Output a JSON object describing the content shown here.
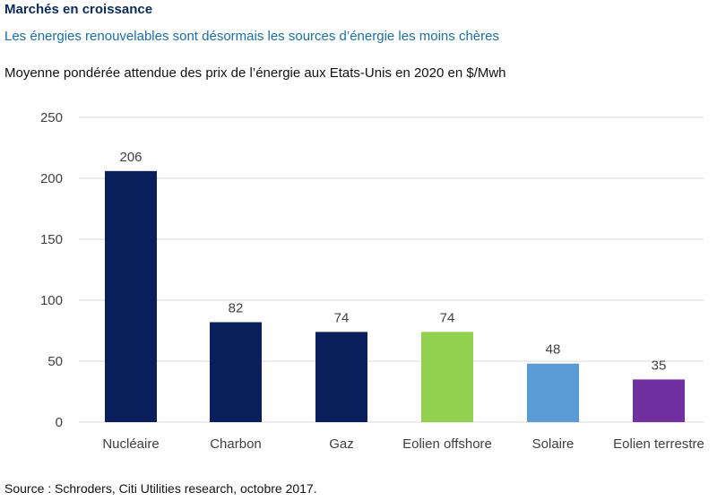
{
  "header": {
    "title": "Marchés en croissance",
    "subtitle": "Les énergies renouvelables sont désormais les sources d’énergie les moins chères"
  },
  "chart_caption": "Moyenne pondérée attendue des prix de l’énergie aux Etats-Unis en 2020 en $/Mwh",
  "source": "Source : Schroders, Citi Utilities research, octobre 2017.",
  "chart_data": {
    "type": "bar",
    "title": "Moyenne pondérée attendue des prix de l’énergie aux Etats-Unis en 2020 en $/Mwh",
    "xlabel": "",
    "ylabel": "",
    "categories": [
      "Nucléaire",
      "Charbon",
      "Gaz",
      "Eolien offshore",
      "Solaire",
      "Eolien terrestre"
    ],
    "values": [
      206,
      82,
      74,
      74,
      48,
      35
    ],
    "bar_colors": [
      "#0b1f5c",
      "#0b1f5c",
      "#0b1f5c",
      "#92d050",
      "#5b9bd5",
      "#7030a0"
    ],
    "ylim": [
      0,
      250
    ],
    "yticks": [
      0,
      50,
      100,
      150,
      200,
      250
    ],
    "grid": true,
    "data_labels": true
  },
  "colors": {
    "title": "#0b2a5b",
    "subtitle": "#1a6fa8",
    "gridline": "#d9d9d9",
    "axis_text": "#404040"
  }
}
